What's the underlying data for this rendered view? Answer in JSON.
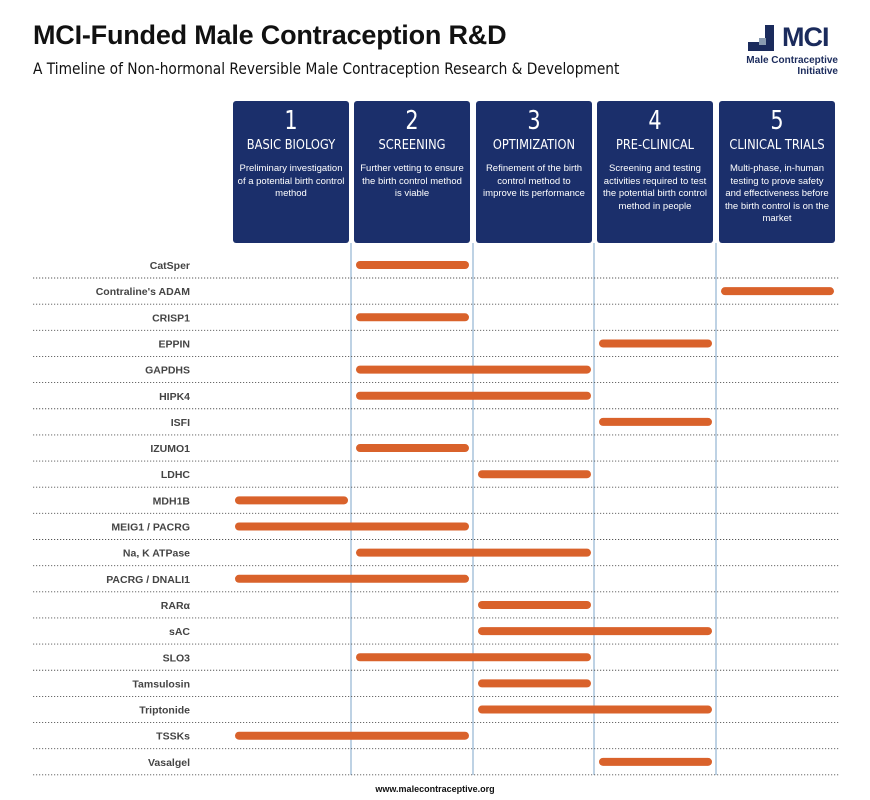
{
  "header": {
    "title": "MCI-Funded Male Contraception R&D",
    "subtitle": "A Timeline of Non-hormonal Reversible Male Contraception Research & Development"
  },
  "logo": {
    "text": "MCI",
    "tagline_line1": "Male Contraceptive",
    "tagline_line2": "Initiative"
  },
  "stages": [
    {
      "number": "1",
      "name": "BASIC BIOLOGY",
      "description": "Preliminary investigation of a potential birth control method"
    },
    {
      "number": "2",
      "name": "SCREENING",
      "description": "Further vetting to ensure the birth control method is viable"
    },
    {
      "number": "3",
      "name": "OPTIMIZATION",
      "description": "Refinement of the birth control method to improve its performance"
    },
    {
      "number": "4",
      "name": "PRE-CLINICAL",
      "description": "Screening and testing activities required to test the potential birth control method in people"
    },
    {
      "number": "5",
      "name": "CLINICAL TRIALS",
      "description": "Multi-phase, in-human testing to prove safety and effectiveness before the birth control is on the market"
    }
  ],
  "chart_data": {
    "type": "bar",
    "orientation": "horizontal",
    "x_axis": [
      "BASIC BIOLOGY",
      "SCREENING",
      "OPTIMIZATION",
      "PRE-CLINICAL",
      "CLINICAL TRIALS"
    ],
    "xlim": [
      1,
      6
    ],
    "rows": [
      {
        "label": "CatSper",
        "start_stage": 2,
        "end_stage": 2
      },
      {
        "label": "Contraline's ADAM",
        "start_stage": 5,
        "end_stage": 5
      },
      {
        "label": "CRISP1",
        "start_stage": 2,
        "end_stage": 2
      },
      {
        "label": "EPPIN",
        "start_stage": 4,
        "end_stage": 4
      },
      {
        "label": "GAPDHS",
        "start_stage": 2,
        "end_stage": 3
      },
      {
        "label": "HIPK4",
        "start_stage": 2,
        "end_stage": 3
      },
      {
        "label": "ISFI",
        "start_stage": 4,
        "end_stage": 4
      },
      {
        "label": "IZUMO1",
        "start_stage": 2,
        "end_stage": 2
      },
      {
        "label": "LDHC",
        "start_stage": 3,
        "end_stage": 3
      },
      {
        "label": "MDH1B",
        "start_stage": 1,
        "end_stage": 1
      },
      {
        "label": "MEIG1 / PACRG",
        "start_stage": 1,
        "end_stage": 2
      },
      {
        "label": "Na, K ATPase",
        "start_stage": 2,
        "end_stage": 3
      },
      {
        "label": "PACRG / DNALI1",
        "start_stage": 1,
        "end_stage": 2
      },
      {
        "label": "RARα",
        "start_stage": 3,
        "end_stage": 3
      },
      {
        "label": "sAC",
        "start_stage": 3,
        "end_stage": 4
      },
      {
        "label": "SLO3",
        "start_stage": 2,
        "end_stage": 3
      },
      {
        "label": "Tamsulosin",
        "start_stage": 3,
        "end_stage": 3
      },
      {
        "label": "Triptonide",
        "start_stage": 3,
        "end_stage": 4
      },
      {
        "label": "TSSKs",
        "start_stage": 1,
        "end_stage": 2
      },
      {
        "label": "Vasalgel",
        "start_stage": 4,
        "end_stage": 4
      }
    ]
  },
  "colors": {
    "stage_box": "#1b2f6b",
    "bar": "#d9622b",
    "divider": "#a9c4dc",
    "logo": "#1b2b5c"
  },
  "footer": {
    "url": "www.malecontraceptive.org"
  }
}
